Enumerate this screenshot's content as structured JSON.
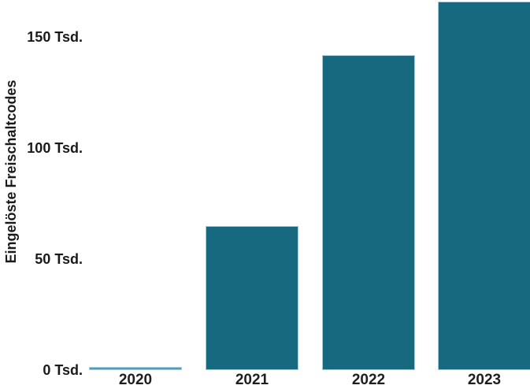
{
  "chart_data": {
    "type": "bar",
    "title": "",
    "categories": [
      "2020",
      "2021",
      "2022",
      "2023"
    ],
    "values": [
      0.5,
      65,
      142,
      166
    ],
    "unit": "Tsd.",
    "xlabel": "",
    "ylabel": "Eingelöste Freischaltcodes",
    "y_ticks": [
      {
        "value": 0,
        "label": "0 Tsd."
      },
      {
        "value": 50,
        "label": "50 Tsd."
      },
      {
        "value": 100,
        "label": "100 Tsd."
      },
      {
        "value": 150,
        "label": "150 Tsd."
      }
    ],
    "ylim": [
      0,
      168
    ],
    "grid": false,
    "legend": false,
    "colors": {
      "bar_fill": "#17697f",
      "bar_border": "#a3cddb",
      "near_zero_bar": "#4e9db8",
      "text": "#1a1a1a",
      "background": "#ffffff"
    }
  }
}
